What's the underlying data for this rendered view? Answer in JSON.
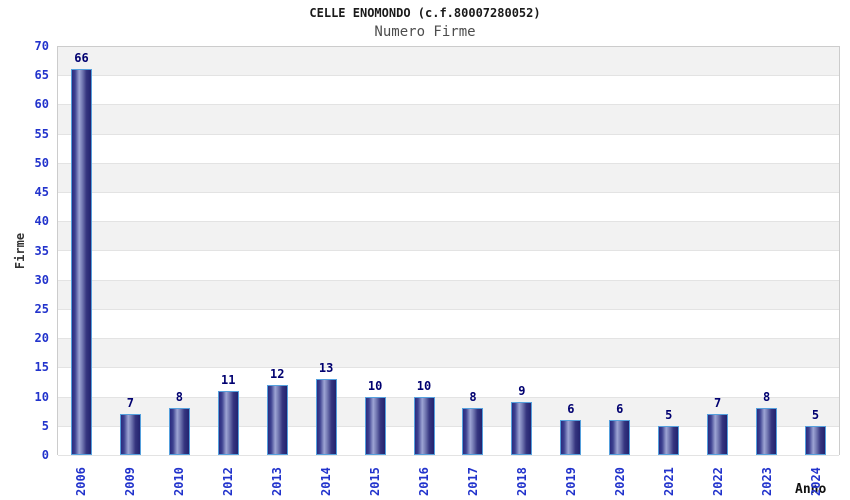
{
  "page": {
    "title": "CELLE ENOMONDO (c.f.80007280052)",
    "subtitle": "Numero Firme"
  },
  "chart_data": {
    "type": "bar",
    "title": "CELLE ENOMONDO (c.f.80007280052)",
    "subtitle": "Numero Firme",
    "xlabel": "Anno",
    "ylabel": "Firme",
    "categories": [
      "2006",
      "2009",
      "2010",
      "2012",
      "2013",
      "2014",
      "2015",
      "2016",
      "2017",
      "2018",
      "2019",
      "2020",
      "2021",
      "2022",
      "2023",
      "2024"
    ],
    "values": [
      66,
      7,
      8,
      11,
      12,
      13,
      10,
      10,
      8,
      9,
      6,
      6,
      5,
      7,
      8,
      5
    ],
    "ylim": [
      0,
      70
    ],
    "ytick_step": 5,
    "yticks": [
      0,
      5,
      10,
      15,
      20,
      25,
      30,
      35,
      40,
      45,
      50,
      55,
      60,
      65,
      70
    ],
    "grid": "horizontal-bands-every-5",
    "legend": "none",
    "value_labels": "above-bars",
    "colors": {
      "tick_label": "#2233cc",
      "value_label": "#000070",
      "bar_border": "#55a0dd",
      "bar_dark": "#23236f",
      "bar_light": "#9da4d4",
      "band_gray": "#f2f2f2",
      "band_white": "#ffffff",
      "grid_line": "#e3e3e3",
      "plot_border": "#cccccc",
      "title_color": "#1a1a1a",
      "subtitle_color": "#4d4d4d"
    }
  }
}
